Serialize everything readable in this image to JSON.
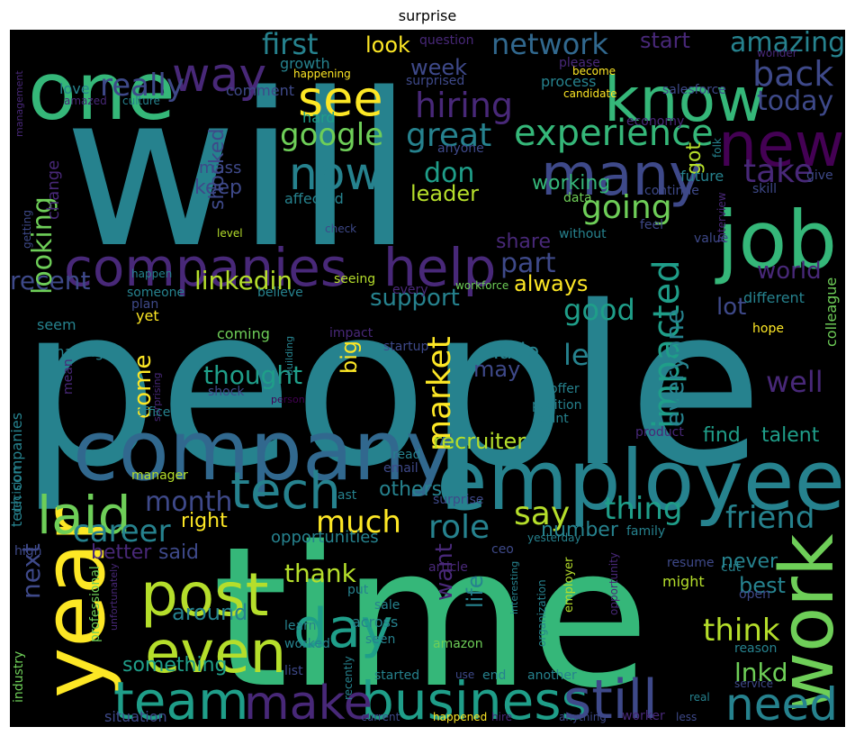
{
  "title": "surprise",
  "palette": {
    "dpurple": "#440154",
    "purple": "#482878",
    "indigo": "#3e4989",
    "blue": "#31688e",
    "teal": "#26828e",
    "cyan": "#1f9e89",
    "green": "#35b779",
    "lime": "#6ece58",
    "ylime": "#b5de2b",
    "yellow": "#fde725"
  },
  "words": [
    {
      "text": "people",
      "c": "teal"
    },
    {
      "text": "will",
      "c": "teal"
    },
    {
      "text": "time",
      "c": "green"
    },
    {
      "text": "company",
      "c": "blue"
    },
    {
      "text": "employee",
      "c": "teal"
    },
    {
      "text": "one",
      "c": "green"
    },
    {
      "text": "year",
      "c": "yellow"
    },
    {
      "text": "job",
      "c": "green"
    },
    {
      "text": "companies",
      "c": "purple"
    },
    {
      "text": "know",
      "c": "green"
    },
    {
      "text": "many",
      "c": "indigo"
    },
    {
      "text": "new",
      "c": "dpurple"
    },
    {
      "text": "help",
      "c": "purple"
    },
    {
      "text": "way",
      "c": "purple"
    },
    {
      "text": "work",
      "c": "lime"
    },
    {
      "text": "business",
      "c": "cyan"
    },
    {
      "text": "team",
      "c": "cyan"
    },
    {
      "text": "make",
      "c": "purple"
    },
    {
      "text": "still",
      "c": "indigo"
    },
    {
      "text": "post",
      "c": "ylime"
    },
    {
      "text": "even",
      "c": "ylime"
    },
    {
      "text": "day",
      "c": "cyan"
    },
    {
      "text": "laid",
      "c": "lime"
    },
    {
      "text": "tech",
      "c": "teal"
    },
    {
      "text": "see",
      "c": "yellow"
    },
    {
      "text": "now",
      "c": "teal"
    },
    {
      "text": "need",
      "c": "teal"
    },
    {
      "text": "experience",
      "c": "green"
    },
    {
      "text": "google",
      "c": "lime"
    },
    {
      "text": "hiring",
      "c": "purple"
    },
    {
      "text": "great",
      "c": "teal"
    },
    {
      "text": "impacted",
      "c": "cyan"
    },
    {
      "text": "back",
      "c": "indigo"
    },
    {
      "text": "take",
      "c": "purple"
    },
    {
      "text": "going",
      "c": "lime"
    },
    {
      "text": "really",
      "c": "indigo"
    },
    {
      "text": "first",
      "c": "teal"
    },
    {
      "text": "network",
      "c": "blue"
    },
    {
      "text": "amazing",
      "c": "teal"
    },
    {
      "text": "today",
      "c": "indigo"
    },
    {
      "text": "career",
      "c": "teal"
    },
    {
      "text": "month",
      "c": "indigo"
    },
    {
      "text": "much",
      "c": "yellow"
    },
    {
      "text": "role",
      "c": "teal"
    },
    {
      "text": "say",
      "c": "ylime"
    },
    {
      "text": "thing",
      "c": "cyan"
    },
    {
      "text": "friend",
      "c": "teal"
    },
    {
      "text": "think",
      "c": "ylime"
    },
    {
      "text": "lnkd",
      "c": "lime"
    },
    {
      "text": "well",
      "c": "purple"
    },
    {
      "text": "market",
      "c": "yellow"
    },
    {
      "text": "good",
      "c": "cyan"
    },
    {
      "text": "let",
      "c": "teal"
    },
    {
      "text": "linkedin",
      "c": "ylime"
    },
    {
      "text": "thought",
      "c": "cyan"
    },
    {
      "text": "part",
      "c": "indigo"
    },
    {
      "text": "support",
      "c": "teal"
    },
    {
      "text": "lot",
      "c": "indigo"
    },
    {
      "text": "world",
      "c": "purple"
    },
    {
      "text": "recent",
      "c": "indigo"
    },
    {
      "text": "looking",
      "c": "lime"
    },
    {
      "text": "don",
      "c": "cyan"
    },
    {
      "text": "week",
      "c": "indigo"
    },
    {
      "text": "look",
      "c": "yellow"
    },
    {
      "text": "start",
      "c": "purple"
    },
    {
      "text": "leader",
      "c": "ylime"
    },
    {
      "text": "working",
      "c": "green"
    },
    {
      "text": "shocked",
      "c": "indigo"
    },
    {
      "text": "keep",
      "c": "indigo"
    },
    {
      "text": "share",
      "c": "purple"
    },
    {
      "text": "always",
      "c": "yellow"
    },
    {
      "text": "everyone",
      "c": "teal"
    },
    {
      "text": "made",
      "c": "teal"
    },
    {
      "text": "come",
      "c": "yellow"
    },
    {
      "text": "may",
      "c": "indigo"
    },
    {
      "text": "big",
      "c": "yellow"
    },
    {
      "text": "recruiter",
      "c": "ylime"
    },
    {
      "text": "find",
      "c": "cyan"
    },
    {
      "text": "talent",
      "c": "cyan"
    },
    {
      "text": "want",
      "c": "purple"
    },
    {
      "text": "life",
      "c": "teal"
    },
    {
      "text": "others",
      "c": "teal"
    },
    {
      "text": "thank",
      "c": "ylime"
    },
    {
      "text": "right",
      "c": "yellow"
    },
    {
      "text": "better",
      "c": "purple"
    },
    {
      "text": "said",
      "c": "indigo"
    },
    {
      "text": "around",
      "c": "teal"
    },
    {
      "text": "something",
      "c": "cyan"
    },
    {
      "text": "next",
      "c": "indigo"
    },
    {
      "text": "best",
      "c": "teal"
    },
    {
      "text": "never",
      "c": "teal"
    },
    {
      "text": "number",
      "c": "teal"
    },
    {
      "text": "opportunities",
      "c": "teal"
    },
    {
      "text": "got",
      "c": "ylime"
    },
    {
      "text": "change",
      "c": "purple"
    },
    {
      "text": "affected",
      "c": "teal"
    },
    {
      "text": "mass",
      "c": "indigo"
    },
    {
      "text": "hard",
      "c": "cyan"
    },
    {
      "text": "growth",
      "c": "teal"
    },
    {
      "text": "love",
      "c": "teal"
    },
    {
      "text": "comment",
      "c": "indigo"
    },
    {
      "text": "question",
      "c": "purple"
    },
    {
      "text": "please",
      "c": "purple"
    },
    {
      "text": "process",
      "c": "teal"
    },
    {
      "text": "surprised",
      "c": "indigo"
    },
    {
      "text": "anyone",
      "c": "indigo"
    },
    {
      "text": "future",
      "c": "teal"
    },
    {
      "text": "economy",
      "c": "purple"
    },
    {
      "text": "salesforce",
      "c": "indigo"
    },
    {
      "text": "candidate",
      "c": "yellow"
    },
    {
      "text": "become",
      "c": "yellow"
    },
    {
      "text": "happening",
      "c": "yellow"
    },
    {
      "text": "wonder",
      "c": "purple"
    },
    {
      "text": "culture",
      "c": "teal"
    },
    {
      "text": "amazed",
      "c": "purple"
    },
    {
      "text": "management",
      "c": "purple"
    },
    {
      "text": "folk",
      "c": "teal"
    },
    {
      "text": "skill",
      "c": "indigo"
    },
    {
      "text": "give",
      "c": "indigo"
    },
    {
      "text": "continue",
      "c": "indigo"
    },
    {
      "text": "data",
      "c": "lime"
    },
    {
      "text": "interview",
      "c": "purple"
    },
    {
      "text": "value",
      "c": "indigo"
    },
    {
      "text": "feel",
      "c": "indigo"
    },
    {
      "text": "without",
      "c": "teal"
    },
    {
      "text": "check",
      "c": "indigo"
    },
    {
      "text": "level",
      "c": "ylime"
    },
    {
      "text": "getting",
      "c": "indigo"
    },
    {
      "text": "happen",
      "c": "teal"
    },
    {
      "text": "someone",
      "c": "teal"
    },
    {
      "text": "plan",
      "c": "indigo"
    },
    {
      "text": "seem",
      "c": "teal"
    },
    {
      "text": "making",
      "c": "teal"
    },
    {
      "text": "yet",
      "c": "yellow"
    },
    {
      "text": "coming",
      "c": "lime"
    },
    {
      "text": "believe",
      "c": "teal"
    },
    {
      "text": "seeing",
      "c": "ylime"
    },
    {
      "text": "every",
      "c": "purple"
    },
    {
      "text": "workforce",
      "c": "lime"
    },
    {
      "text": "different",
      "c": "teal"
    },
    {
      "text": "colleague",
      "c": "lime"
    },
    {
      "text": "hope",
      "c": "yellow"
    },
    {
      "text": "impact",
      "c": "purple"
    },
    {
      "text": "building",
      "c": "teal"
    },
    {
      "text": "startup",
      "c": "indigo"
    },
    {
      "text": "surprising",
      "c": "purple"
    },
    {
      "text": "mean",
      "c": "purple"
    },
    {
      "text": "tech companies",
      "c": "teal"
    },
    {
      "text": "shock",
      "c": "indigo"
    },
    {
      "text": "person",
      "c": "dpurple"
    },
    {
      "text": "offer",
      "c": "teal"
    },
    {
      "text": "position",
      "c": "teal"
    },
    {
      "text": "point",
      "c": "teal"
    },
    {
      "text": "office",
      "c": "teal"
    },
    {
      "text": "decision",
      "c": "teal"
    },
    {
      "text": "product",
      "c": "purple"
    },
    {
      "text": "read",
      "c": "teal"
    },
    {
      "text": "email",
      "c": "indigo"
    },
    {
      "text": "manager",
      "c": "ylime"
    },
    {
      "text": "last",
      "c": "teal"
    },
    {
      "text": "surprise",
      "c": "indigo"
    },
    {
      "text": "ceo",
      "c": "indigo"
    },
    {
      "text": "family",
      "c": "teal"
    },
    {
      "text": "yesterday",
      "c": "teal"
    },
    {
      "text": "article",
      "c": "purple"
    },
    {
      "text": "high",
      "c": "indigo"
    },
    {
      "text": "professional",
      "c": "lime"
    },
    {
      "text": "unfortunately",
      "c": "purple"
    },
    {
      "text": "opportunity",
      "c": "purple"
    },
    {
      "text": "resume",
      "c": "indigo"
    },
    {
      "text": "cut",
      "c": "teal"
    },
    {
      "text": "open",
      "c": "indigo"
    },
    {
      "text": "might",
      "c": "ylime"
    },
    {
      "text": "employer",
      "c": "ylime"
    },
    {
      "text": "interesting",
      "c": "teal"
    },
    {
      "text": "organization",
      "c": "teal"
    },
    {
      "text": "put",
      "c": "teal"
    },
    {
      "text": "sale",
      "c": "teal"
    },
    {
      "text": "learn",
      "c": "teal"
    },
    {
      "text": "across",
      "c": "teal"
    },
    {
      "text": "seen",
      "c": "teal"
    },
    {
      "text": "worked",
      "c": "teal"
    },
    {
      "text": "amazon",
      "c": "lime"
    },
    {
      "text": "reason",
      "c": "teal"
    },
    {
      "text": "industry",
      "c": "lime"
    },
    {
      "text": "list",
      "c": "indigo"
    },
    {
      "text": "started",
      "c": "teal"
    },
    {
      "text": "use",
      "c": "indigo"
    },
    {
      "text": "end",
      "c": "teal"
    },
    {
      "text": "another",
      "c": "teal"
    },
    {
      "text": "recently",
      "c": "teal"
    },
    {
      "text": "service",
      "c": "indigo"
    },
    {
      "text": "real",
      "c": "teal"
    },
    {
      "text": "situation",
      "c": "indigo"
    },
    {
      "text": "current",
      "c": "indigo"
    },
    {
      "text": "happened",
      "c": "yellow"
    },
    {
      "text": "hire",
      "c": "purple"
    },
    {
      "text": "anything",
      "c": "indigo"
    },
    {
      "text": "worker",
      "c": "purple"
    },
    {
      "text": "less",
      "c": "indigo"
    }
  ]
}
